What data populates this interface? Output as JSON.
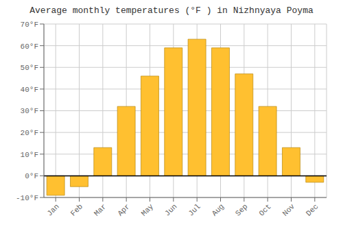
{
  "chart_data": {
    "type": "bar",
    "title": "Average monthly temperatures (°F ) in Nizhnyaya Poyma",
    "categories": [
      "Jan",
      "Feb",
      "Mar",
      "Apr",
      "May",
      "Jun",
      "Jul",
      "Aug",
      "Sep",
      "Oct",
      "Nov",
      "Dec"
    ],
    "values": [
      -9,
      -5,
      13,
      32,
      46,
      59,
      63,
      59,
      47,
      32,
      13,
      -3
    ],
    "color": "#FFC030",
    "ylim": [
      -10,
      70
    ],
    "yticks": [
      {
        "value": -10,
        "label": "-10°F"
      },
      {
        "value": 0,
        "label": "0°F"
      },
      {
        "value": 10,
        "label": "10°F"
      },
      {
        "value": 20,
        "label": "20°F"
      },
      {
        "value": 30,
        "label": "30°F"
      },
      {
        "value": 40,
        "label": "40°F"
      },
      {
        "value": 50,
        "label": "50°F"
      },
      {
        "value": 60,
        "label": "60°F"
      },
      {
        "value": 70,
        "label": "70°F"
      }
    ],
    "grid": true
  }
}
